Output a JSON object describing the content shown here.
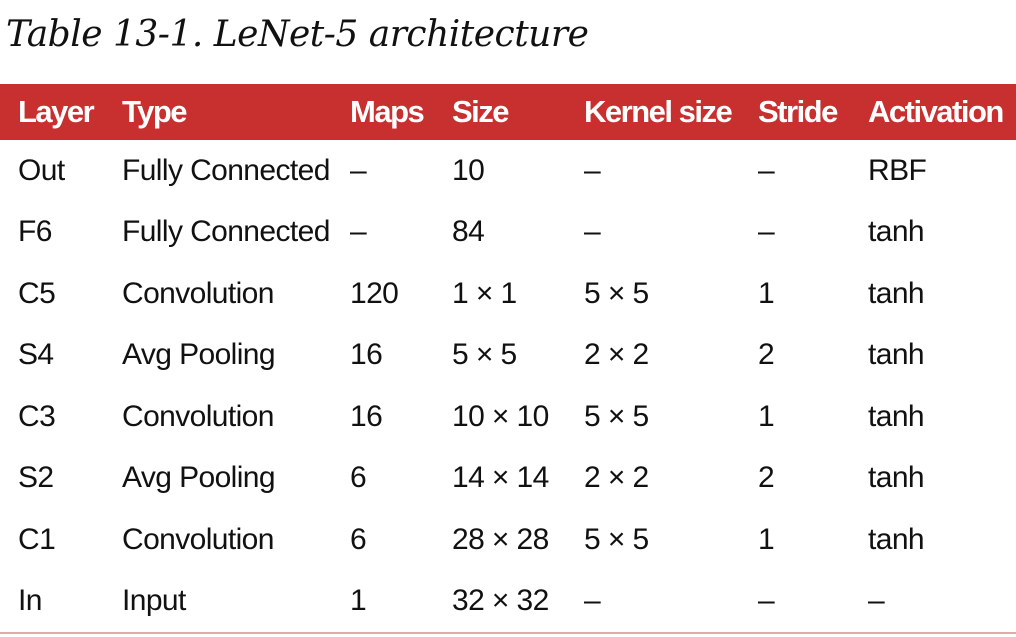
{
  "caption": "Table 13-1. LeNet-5 architecture",
  "colors": {
    "header_bg": "#c8302f",
    "header_text": "#ffffff",
    "body_text": "#111111",
    "bottom_rule": "#e3a9a8"
  },
  "table": {
    "headers": [
      "Layer",
      "Type",
      "Maps",
      "Size",
      "Kernel size",
      "Stride",
      "Activation"
    ],
    "rows": [
      [
        "Out",
        "Fully Connected",
        "–",
        "10",
        "–",
        "–",
        "RBF"
      ],
      [
        "F6",
        "Fully Connected",
        "–",
        "84",
        "–",
        "–",
        "tanh"
      ],
      [
        "C5",
        "Convolution",
        "120",
        "1 × 1",
        "5 × 5",
        "1",
        "tanh"
      ],
      [
        "S4",
        "Avg Pooling",
        "16",
        "5 × 5",
        "2 × 2",
        "2",
        "tanh"
      ],
      [
        "C3",
        "Convolution",
        "16",
        "10 × 10",
        "5 × 5",
        "1",
        "tanh"
      ],
      [
        "S2",
        "Avg Pooling",
        "6",
        "14 × 14",
        "2 × 2",
        "2",
        "tanh"
      ],
      [
        "C1",
        "Convolution",
        "6",
        "28 × 28",
        "5 × 5",
        "1",
        "tanh"
      ],
      [
        "In",
        "Input",
        "1",
        "32 × 32",
        "–",
        "–",
        "–"
      ]
    ]
  }
}
